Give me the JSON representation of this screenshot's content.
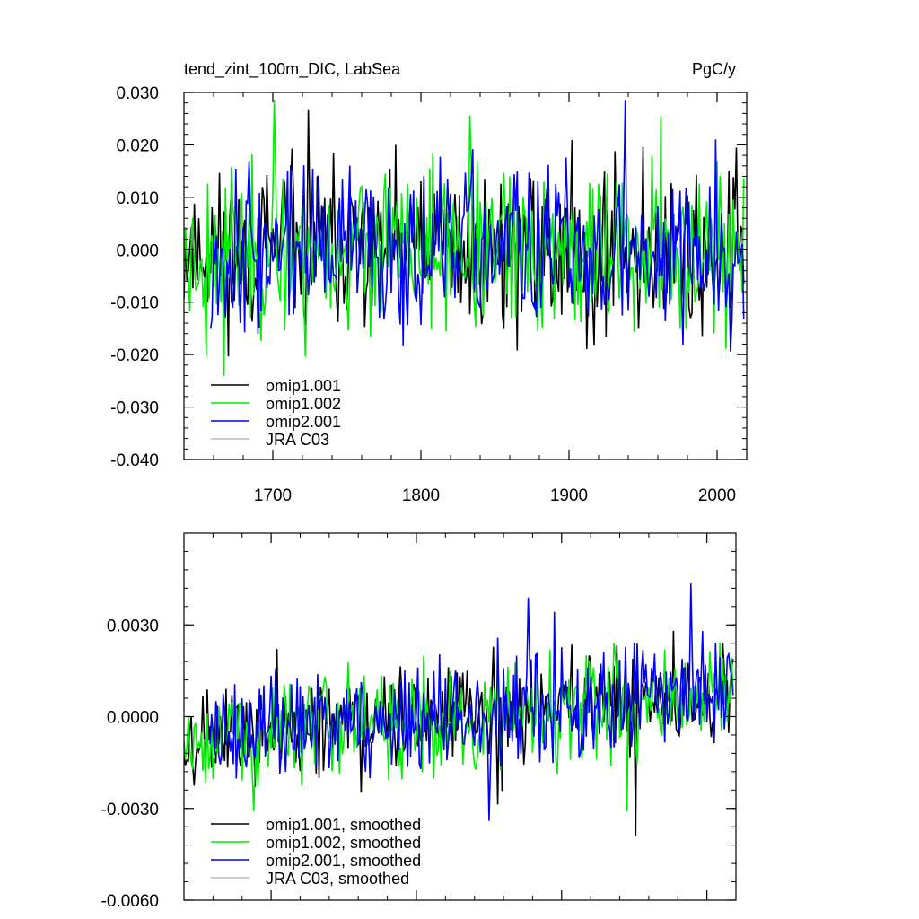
{
  "chart_data": [
    {
      "type": "line",
      "title": "tend_zint_100m_DIC, LabSea",
      "units": "PgC/y",
      "xlim": [
        1640,
        2020
      ],
      "ylim": [
        -0.04,
        0.03
      ],
      "xticks": [
        1700,
        1800,
        1900,
        2000
      ],
      "xtick_labels": [
        "1700",
        "1800",
        "1900",
        "2000"
      ],
      "yticks": [
        -0.04,
        -0.03,
        -0.02,
        -0.01,
        0.0,
        0.01,
        0.02,
        0.03
      ],
      "ytick_labels": [
        "-0.040",
        "-0.030",
        "-0.020",
        "-0.010",
        "0.000",
        "0.010",
        "0.020",
        "0.030"
      ],
      "legend_position": "bottom-left",
      "series": [
        {
          "name": "omip1.001",
          "color": "#000000",
          "x_start": 1640,
          "x_end": 2018,
          "amplitude": 0.011,
          "seed": 11
        },
        {
          "name": "omip1.002",
          "color": "#00ee00",
          "x_start": 1640,
          "x_end": 2018,
          "amplitude": 0.011,
          "seed": 23
        },
        {
          "name": "omip2.001",
          "color": "#0000ff",
          "x_start": 1658,
          "x_end": 2018,
          "amplitude": 0.011,
          "seed": 37
        },
        {
          "name": "JRA C03",
          "color": "#bbbbbb",
          "x_start": null,
          "x_end": null,
          "amplitude": 0,
          "seed": 0
        }
      ]
    },
    {
      "type": "line",
      "title": "",
      "xlim": [
        1640,
        2020
      ],
      "ylim": [
        -0.006,
        0.006
      ],
      "xticks": [
        1700,
        1800,
        1900,
        2000
      ],
      "xtick_labels": [],
      "yticks": [
        -0.006,
        -0.003,
        0.0,
        0.003
      ],
      "ytick_labels": [
        "-0.0060",
        "-0.0030",
        "0.0000",
        "0.0030"
      ],
      "legend_position": "bottom-left",
      "series": [
        {
          "name": "omip1.001, smoothed",
          "color": "#000000",
          "x_start": 1640,
          "x_end": 2018,
          "amplitude": 0.0012,
          "seed": 11
        },
        {
          "name": "omip1.002, smoothed",
          "color": "#00ee00",
          "x_start": 1640,
          "x_end": 2018,
          "amplitude": 0.0012,
          "seed": 23
        },
        {
          "name": "omip2.001, smoothed",
          "color": "#0000ff",
          "x_start": 1658,
          "x_end": 2018,
          "amplitude": 0.0012,
          "seed": 37
        },
        {
          "name": "JRA C03, smoothed",
          "color": "#bbbbbb",
          "x_start": null,
          "x_end": null,
          "amplitude": 0,
          "seed": 0
        }
      ]
    }
  ]
}
